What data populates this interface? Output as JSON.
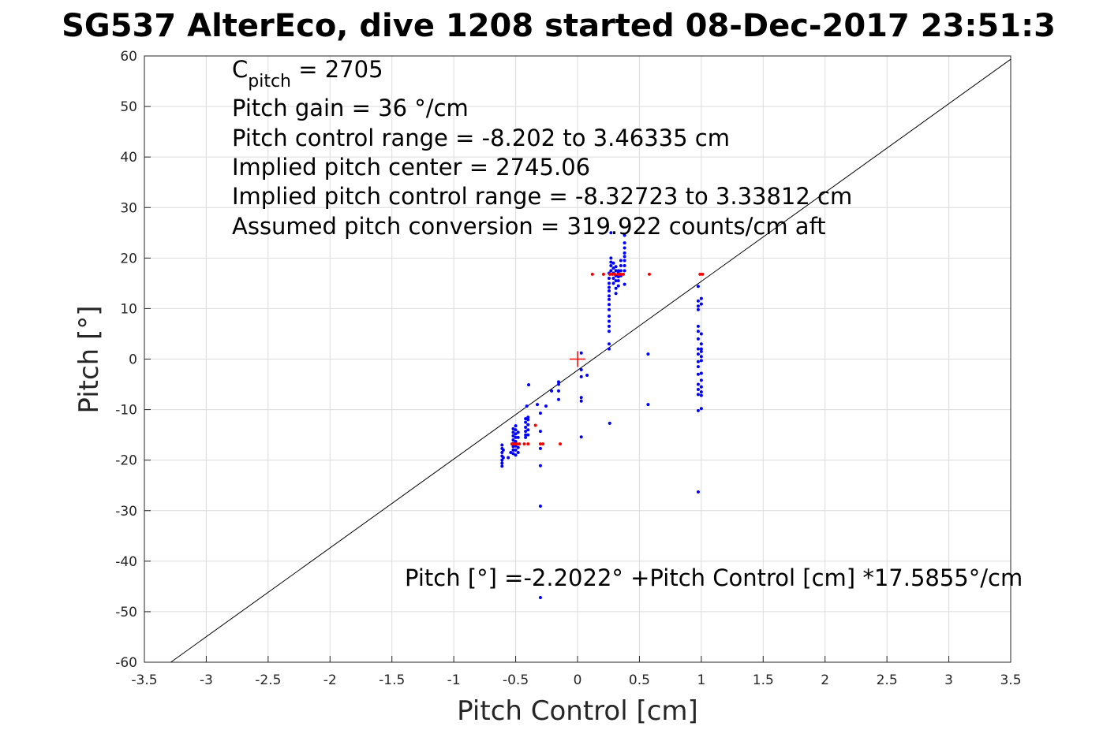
{
  "chart_data": {
    "type": "scatter",
    "title": "SG537 AlterEco, dive 1208 started 08-Dec-2017 23:51:3",
    "xlabel": "Pitch Control [cm]",
    "ylabel": "Pitch [°]",
    "xlim": [
      -3.5,
      3.5
    ],
    "ylim": [
      -60,
      60
    ],
    "xticks": [
      -3.5,
      -3,
      -2.5,
      -2,
      -1.5,
      -1,
      -0.5,
      0,
      0.5,
      1,
      1.5,
      2,
      2.5,
      3,
      3.5
    ],
    "xtick_labels": [
      "-3.5",
      "-3",
      "-2.5",
      "-2",
      "-1.5",
      "-1",
      "-0.5",
      "0",
      "0.5",
      "1",
      "1.5",
      "2",
      "2.5",
      "3",
      "3.5"
    ],
    "yticks": [
      60,
      50,
      40,
      30,
      20,
      10,
      0,
      -10,
      -20,
      -30,
      -40,
      -50,
      -60
    ],
    "ytick_labels": [
      "60",
      "50",
      "40",
      "30",
      "20",
      "10",
      "0",
      "-10",
      "-20",
      "-30",
      "-40",
      "-50",
      "-60"
    ],
    "grid": true,
    "annotations": {
      "c_pitch_prefix": "C",
      "c_pitch_sub": "pitch",
      "c_pitch_value": " = 2705",
      "gain": "Pitch gain = 36 °/cm",
      "range": "Pitch control range = -8.202 to 3.46335 cm",
      "center": "Implied pitch center = 2745.06",
      "implied_range": "Implied pitch control range = -8.32723 to 3.33812 cm",
      "conversion": "Assumed pitch conversion = 319.922 counts/cm aft",
      "fit": "Pitch [°] =-2.2022° +Pitch Control [cm] *17.5855°/cm"
    },
    "fit": {
      "intercept": -2.2022,
      "slope": 17.5855
    },
    "center_marker": {
      "x": 0,
      "y": 0
    },
    "colors": {
      "observed": "#0000ff",
      "commanded": "#ff0000",
      "fit": "#000000"
    },
    "series": [
      {
        "name": "observed",
        "color": "#0000ff",
        "groups": [
          {
            "x": -0.61,
            "y": [
              -17,
              -17.7,
              -18.5,
              -19.2,
              -20,
              -20.6,
              -21.2
            ]
          },
          {
            "x": -0.6,
            "y": [
              -18,
              -19.5
            ]
          },
          {
            "x": -0.56,
            "y": [
              -19.5
            ]
          },
          {
            "x": -0.54,
            "y": [
              -18.5
            ]
          },
          {
            "x": -0.52,
            "y": [
              -13.8,
              -14.5,
              -15.2,
              -16,
              -16.7,
              -17.3,
              -18,
              -18.7
            ]
          },
          {
            "x": -0.5,
            "y": [
              -13.2,
              -14,
              -14.8,
              -15.5,
              -16.3,
              -17.2,
              -18,
              -19
            ]
          },
          {
            "x": -0.48,
            "y": [
              -14.5,
              -15.5,
              -17.5,
              -18.5
            ]
          },
          {
            "x": -0.42,
            "y": [
              -11.8,
              -12.5,
              -13.5,
              -14.3,
              -15,
              -15.5
            ]
          },
          {
            "x": -0.4,
            "y": [
              -11.5,
              -12,
              -13,
              -14,
              -15
            ]
          },
          {
            "x": -0.41,
            "y": [
              -9.3
            ]
          },
          {
            "x": -0.395,
            "y": [
              -5.1
            ]
          },
          {
            "x": -0.325,
            "y": [
              -9
            ]
          },
          {
            "x": -0.255,
            "y": [
              -9.3
            ]
          },
          {
            "x": -0.3,
            "y": [
              -10.7,
              -14.3,
              -17.7,
              -21.1,
              -29.1,
              -47.2
            ]
          },
          {
            "x": -0.21,
            "y": [
              -6.3
            ]
          },
          {
            "x": -0.153,
            "y": [
              -4.5,
              -5,
              -6.3,
              -8
            ]
          },
          {
            "x": 0.03,
            "y": [
              1.2,
              -2.1,
              -3.5,
              -7.6,
              -8.3,
              -15.4
            ]
          },
          {
            "x": 0.077,
            "y": [
              -3.2
            ]
          },
          {
            "x": 0.26,
            "y": [
              -12.7
            ]
          },
          {
            "x": 0.255,
            "y": [
              2,
              3,
              5.5,
              6.5,
              7.5,
              8.5,
              9.8,
              10.8,
              11.8,
              12.5,
              13.5,
              14.2,
              15,
              16,
              17
            ]
          },
          {
            "x": 0.27,
            "y": [
              17.5,
              18.5,
              19.2,
              20,
              25
            ]
          },
          {
            "x": 0.29,
            "y": [
              15,
              16,
              17,
              18,
              19
            ]
          },
          {
            "x": 0.31,
            "y": [
              13,
              14,
              15.5,
              16.5,
              17.5,
              18.3
            ]
          },
          {
            "x": 0.33,
            "y": [
              14.5,
              15.5,
              16.3,
              17,
              17.5
            ]
          },
          {
            "x": 0.35,
            "y": [
              16.5,
              17.5,
              18.5,
              19.5
            ]
          },
          {
            "x": 0.38,
            "y": [
              14.8,
              17.5,
              18.5,
              19.5,
              20.3,
              21,
              22,
              23,
              24.5
            ]
          },
          {
            "x": 0.57,
            "y": [
              1,
              -9
            ]
          },
          {
            "x": 0.975,
            "y": [
              14.4,
              11.5,
              10.5,
              9.8,
              6.5,
              5.5,
              4,
              2,
              1,
              -0.5,
              -1.5,
              -3,
              -5,
              -6,
              -7,
              -10.2,
              -26.3
            ]
          },
          {
            "x": 1.0,
            "y": [
              12,
              10.9,
              5,
              3,
              2,
              1.5,
              0.5,
              -0.3,
              -2.8,
              -4.2,
              -5.5,
              -6.5,
              -7.2,
              -9.8
            ]
          }
        ]
      },
      {
        "name": "commanded",
        "color": "#ff0000",
        "groups": [
          {
            "x": 16.8,
            "swap": true,
            "y": [
              0.12,
              0.21,
              0.26,
              0.28,
              0.3,
              0.33,
              0.35,
              0.37,
              0.58,
              0.99,
              1.01
            ]
          },
          {
            "x": -16.8,
            "swap": true,
            "y": [
              -0.53,
              -0.51,
              -0.49,
              -0.47,
              -0.43,
              -0.4,
              -0.3,
              -0.28,
              -0.14
            ]
          },
          {
            "x": -0.34,
            "y": [
              -13.1
            ]
          }
        ]
      }
    ]
  }
}
